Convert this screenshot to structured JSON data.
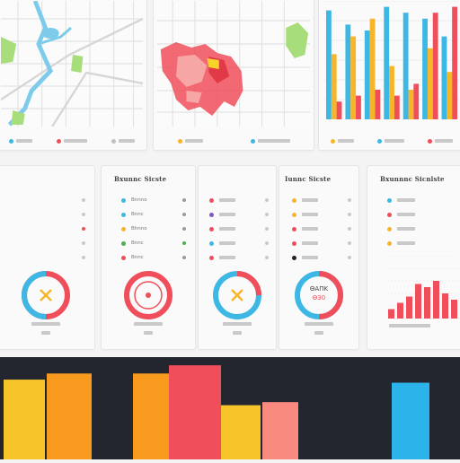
{
  "top_panels": [
    {
      "legend": [
        {
          "color": "#3db7e4"
        },
        {
          "color": "#f04e5a"
        },
        {
          "color": "#c0c0c0"
        }
      ]
    },
    {
      "legend": [
        {
          "color": "#f7b52a"
        },
        {
          "color": "#3db7e4"
        }
      ]
    },
    {
      "legend": [
        {
          "color": "#f7b52a"
        },
        {
          "color": "#3db7e4"
        },
        {
          "color": "#f04e5a"
        }
      ]
    }
  ],
  "bar_chart_top": {
    "type": "bar",
    "series": [
      {
        "color": "#3db7e4"
      },
      {
        "color": "#f7b52a"
      },
      {
        "color": "#f04e5a"
      }
    ],
    "values_yellow": [
      0.55,
      0.7,
      0.85,
      0.45,
      0.25,
      0.6,
      0.4
    ],
    "values_blue": [
      0.92,
      0.8,
      0.75,
      0.95,
      0.9,
      0.85,
      0.7
    ],
    "values_red": [
      0.15,
      0.2,
      0.25,
      0.2,
      0.3,
      0.9,
      0.95
    ]
  },
  "middle_panels": [
    {
      "title": "",
      "rows": [
        {
          "label": "",
          "dot": "#bbbbbb"
        },
        {
          "label": "",
          "dot": "#bbbbbb"
        },
        {
          "label": "",
          "dot": "#f04e5a"
        },
        {
          "label": "",
          "dot": "#bbbbbb"
        },
        {
          "label": "",
          "dot": "#bbbbbb"
        }
      ],
      "donut_center": "X",
      "donut_caption_1": "",
      "donut_caption_2": ""
    },
    {
      "title": "Bxunnc Sicste",
      "rows": [
        {
          "label": "Bnnno",
          "dot": "#3db7e4"
        },
        {
          "label": "Bnnc",
          "dot": "#3db7e4"
        },
        {
          "label": "Bhnno",
          "dot": "#f7b52a"
        },
        {
          "label": "Bnnc",
          "dot": "#4caf50"
        },
        {
          "label": "Bnnc",
          "dot": "#f04e5a"
        }
      ],
      "donut_center": "",
      "donut_caption_1": "",
      "donut_caption_2": ""
    },
    {
      "title": "",
      "rows": [
        {
          "label": "",
          "dot": "#f04e5a"
        },
        {
          "label": "",
          "dot": "#7e57c2"
        },
        {
          "label": "",
          "dot": "#f04e5a"
        },
        {
          "label": "",
          "dot": "#3db7e4"
        },
        {
          "label": "",
          "dot": "#f04e5a"
        }
      ],
      "donut_center": "X",
      "donut_caption_1": "",
      "donut_caption_2": ""
    },
    {
      "title": "Iunnc Sicste",
      "rows": [
        {
          "label": "",
          "dot": "#f7b52a"
        },
        {
          "label": "",
          "dot": "#f7b52a"
        },
        {
          "label": "",
          "dot": "#f04e5a"
        },
        {
          "label": "",
          "dot": "#f04e5a"
        },
        {
          "label": "",
          "dot": "#222222"
        }
      ],
      "donut_center_line1": "ΘΑΠΚ",
      "donut_center_line2": "Θ30",
      "donut_caption_1": "",
      "donut_caption_2": ""
    }
  ],
  "right_panel": {
    "title": "Bxunnnc Sicnlste",
    "rows": [
      {
        "dot": "#3db7e4"
      },
      {
        "dot": "#f04e5a"
      },
      {
        "dot": "#f7b52a"
      },
      {
        "dot": "#f7b52a"
      }
    ],
    "bars": [
      0.15,
      0.25,
      0.35,
      0.55,
      0.5,
      0.6,
      0.4,
      0.3
    ]
  },
  "bottom_band": {
    "bars": [
      {
        "color": "#f7c52a",
        "height": 0.78
      },
      {
        "color": "#f79a1e",
        "height": 0.84
      },
      {
        "color": "#f79a1e",
        "height": 0.84
      },
      {
        "color": "#f04e5a",
        "height": 0.92
      },
      {
        "color": "#f7c52a",
        "height": 0.53
      },
      {
        "color": "#f98a80",
        "height": 0.56
      },
      {
        "color": "#2bb3ea",
        "height": 0.75
      }
    ]
  }
}
